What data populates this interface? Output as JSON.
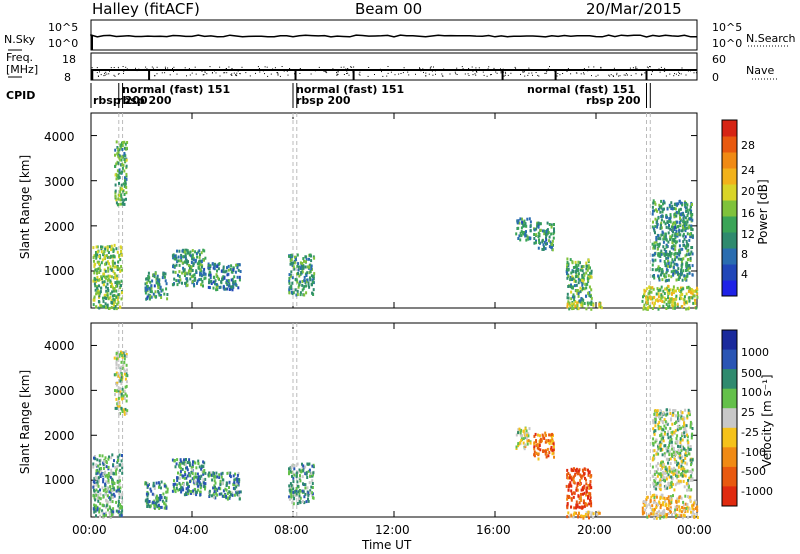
{
  "header": {
    "title": "Halley (fitACF)",
    "beam": "Beam 00",
    "date": "20/Mar/2015"
  },
  "summary": {
    "nsky_label": "N.Sky",
    "nsky_ticks": [
      "10^5",
      "10^0"
    ],
    "nsearch_label": "N.Search",
    "freq_label": [
      "Freq.",
      "[MHz]"
    ],
    "freq_ticks": [
      "18",
      "8"
    ],
    "nave_label": "Nave",
    "nave_ticks": [
      "60",
      "0"
    ],
    "cpid_label": "CPID"
  },
  "cpid_segments": [
    {
      "text": "rbsp 200",
      "t": 0.1
    },
    {
      "text": "rbsp 200",
      "t": 1.15
    },
    {
      "text": "normal (fast) 151",
      "t": 1.25
    },
    {
      "text": "rbsp 200",
      "t": 8.1
    },
    {
      "text": "normal (fast) 151",
      "t": 8.1
    },
    {
      "text": "normal (fast) 151",
      "t": 19.2
    },
    {
      "text": "rbsp 200",
      "t": 22.0
    }
  ],
  "axes": {
    "x_ticks": [
      "00:00",
      "04:00",
      "08:00",
      "12:00",
      "16:00",
      "20:00",
      "00:00"
    ],
    "x_title": "Time UT",
    "y_title": "Slant Range [km]",
    "y_ticks": [
      "1000",
      "2000",
      "3000",
      "4000"
    ]
  },
  "chart_data": [
    {
      "type": "heatmap",
      "panel": "power",
      "xlabel": "Time UT",
      "ylabel": "Slant Range [km]",
      "xlim": [
        0,
        24
      ],
      "ylim": [
        180,
        4500
      ],
      "colorbar": {
        "label": "Power [dB]",
        "ticks": [
          "4",
          "8",
          "12",
          "16",
          "20",
          "24",
          "28"
        ],
        "range": [
          0,
          30
        ]
      },
      "colors": [
        "#1f22e6",
        "#2147b8",
        "#2a6db0",
        "#2f8a6e",
        "#3aa457",
        "#7fc23b",
        "#d9d428",
        "#f2b21b",
        "#f08a14",
        "#e8590f",
        "#d62414"
      ],
      "clusters": [
        {
          "t": [
            0.05,
            1.2
          ],
          "r": [
            200,
            1600
          ],
          "level": 0.45
        },
        {
          "t": [
            0.9,
            1.4
          ],
          "r": [
            2500,
            3900
          ],
          "level": 0.4
        },
        {
          "t": [
            2.1,
            3.0
          ],
          "r": [
            400,
            1000
          ],
          "level": 0.35
        },
        {
          "t": [
            3.2,
            4.5
          ],
          "r": [
            700,
            1500
          ],
          "level": 0.35
        },
        {
          "t": [
            4.6,
            5.9
          ],
          "r": [
            600,
            1200
          ],
          "level": 0.3
        },
        {
          "t": [
            7.8,
            8.8
          ],
          "r": [
            500,
            1400
          ],
          "level": 0.35
        },
        {
          "t": [
            16.8,
            17.4
          ],
          "r": [
            1700,
            2200
          ],
          "level": 0.35
        },
        {
          "t": [
            17.5,
            18.3
          ],
          "r": [
            1500,
            2100
          ],
          "level": 0.35
        },
        {
          "t": [
            18.8,
            19.8
          ],
          "r": [
            300,
            1300
          ],
          "level": 0.4
        },
        {
          "t": [
            18.8,
            20.2
          ],
          "r": [
            180,
            330
          ],
          "level": 0.55
        },
        {
          "t": [
            21.8,
            24.0
          ],
          "r": [
            180,
            700
          ],
          "level": 0.55
        },
        {
          "t": [
            22.2,
            23.8
          ],
          "r": [
            800,
            2600
          ],
          "level": 0.35
        }
      ]
    },
    {
      "type": "heatmap",
      "panel": "velocity",
      "xlabel": "Time UT",
      "ylabel": "Slant Range [km]",
      "xlim": [
        0,
        24
      ],
      "ylim": [
        180,
        4500
      ],
      "colorbar": {
        "label": "Velocity [m s⁻¹]",
        "ticks": [
          "1000",
          "500",
          "100",
          "25",
          "-25",
          "-100",
          "-500",
          "-1000"
        ]
      },
      "colors": [
        "#1a2a9c",
        "#2a55b4",
        "#2f8a6e",
        "#64c04a",
        "#c8c8c8",
        "#f5c21a",
        "#f08a14",
        "#e8590f",
        "#e02a0f"
      ],
      "clusters": [
        {
          "t": [
            0.05,
            1.2
          ],
          "r": [
            200,
            1600
          ],
          "level": 0.35
        },
        {
          "t": [
            0.9,
            1.4
          ],
          "r": [
            2500,
            3900
          ],
          "level": 0.45
        },
        {
          "t": [
            2.1,
            3.0
          ],
          "r": [
            400,
            1000
          ],
          "level": 0.3
        },
        {
          "t": [
            3.2,
            4.5
          ],
          "r": [
            700,
            1500
          ],
          "level": 0.3
        },
        {
          "t": [
            4.6,
            5.9
          ],
          "r": [
            600,
            1200
          ],
          "level": 0.3
        },
        {
          "t": [
            7.8,
            8.8
          ],
          "r": [
            500,
            1400
          ],
          "level": 0.35
        },
        {
          "t": [
            16.8,
            17.4
          ],
          "r": [
            1700,
            2200
          ],
          "level": 0.5
        },
        {
          "t": [
            17.5,
            18.3
          ],
          "r": [
            1500,
            2100
          ],
          "level": 0.75
        },
        {
          "t": [
            18.8,
            19.8
          ],
          "r": [
            400,
            1300
          ],
          "level": 0.9
        },
        {
          "t": [
            18.8,
            20.2
          ],
          "r": [
            180,
            330
          ],
          "level": 0.65
        },
        {
          "t": [
            21.8,
            24.0
          ],
          "r": [
            180,
            700
          ],
          "level": 0.6
        },
        {
          "t": [
            22.2,
            23.8
          ],
          "r": [
            800,
            2600
          ],
          "level": 0.45
        }
      ]
    }
  ]
}
